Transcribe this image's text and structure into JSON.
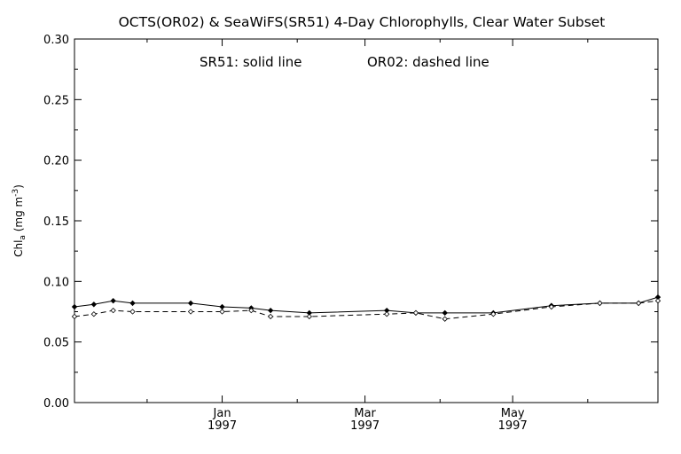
{
  "chart_data": {
    "type": "line",
    "title": "OCTS(OR02) & SeaWiFS(SR51) 4-Day Chlorophylls, Clear Water Subset",
    "annotation_left": "SR51: solid line",
    "annotation_right": "OR02: dashed line",
    "ylabel": {
      "main": "Chl",
      "subscript": "a",
      "units_open": " (mg m",
      "units_exp": "-3",
      "units_close": ")"
    },
    "ylim": [
      0.0,
      0.3
    ],
    "y_ticks": [
      "0.00",
      "0.05",
      "0.10",
      "0.15",
      "0.20",
      "0.25",
      "0.30"
    ],
    "y_tick_values": [
      0.0,
      0.05,
      0.1,
      0.15,
      0.2,
      0.25,
      0.3
    ],
    "xlim": [
      "1996-11-01",
      "1997-06-30"
    ],
    "x_ticks": [
      {
        "date": "1997-01-01",
        "label": "Jan",
        "year": "1997"
      },
      {
        "date": "1997-03-01",
        "label": "Mar",
        "year": "1997"
      },
      {
        "date": "1997-05-01",
        "label": "May",
        "year": "1997"
      }
    ],
    "x_minor_ticks": [
      "1996-12-01",
      "1997-02-01",
      "1997-04-01",
      "1997-06-01"
    ],
    "grid": false,
    "series": [
      {
        "name": "SR51",
        "style": "solid",
        "marker": "diamond",
        "color": "#000000",
        "x": [
          "1996-11-01",
          "1996-11-09",
          "1996-11-17",
          "1996-11-25",
          "1996-12-19",
          "1997-01-01",
          "1997-01-13",
          "1997-01-21",
          "1997-02-06",
          "1997-03-10",
          "1997-03-22",
          "1997-04-03",
          "1997-04-23",
          "1997-05-17",
          "1997-06-06",
          "1997-06-22",
          "1997-06-30"
        ],
        "values": [
          0.079,
          0.081,
          0.084,
          0.082,
          0.082,
          0.079,
          0.078,
          0.076,
          0.074,
          0.076,
          0.074,
          0.074,
          0.074,
          0.08,
          0.082,
          0.082,
          0.087
        ]
      },
      {
        "name": "OR02",
        "style": "dashed",
        "marker": "diamond",
        "color": "#000000",
        "x": [
          "1996-11-01",
          "1996-11-09",
          "1996-11-17",
          "1996-11-25",
          "1996-12-19",
          "1997-01-01",
          "1997-01-13",
          "1997-01-21",
          "1997-02-06",
          "1997-03-10",
          "1997-03-22",
          "1997-04-03",
          "1997-04-23",
          "1997-05-17",
          "1997-06-06",
          "1997-06-22",
          "1997-06-30"
        ],
        "values": [
          0.071,
          0.073,
          0.076,
          0.075,
          0.075,
          0.075,
          0.076,
          0.071,
          0.071,
          0.073,
          0.074,
          0.069,
          0.073,
          0.079,
          0.082,
          0.082,
          0.084
        ]
      }
    ]
  }
}
